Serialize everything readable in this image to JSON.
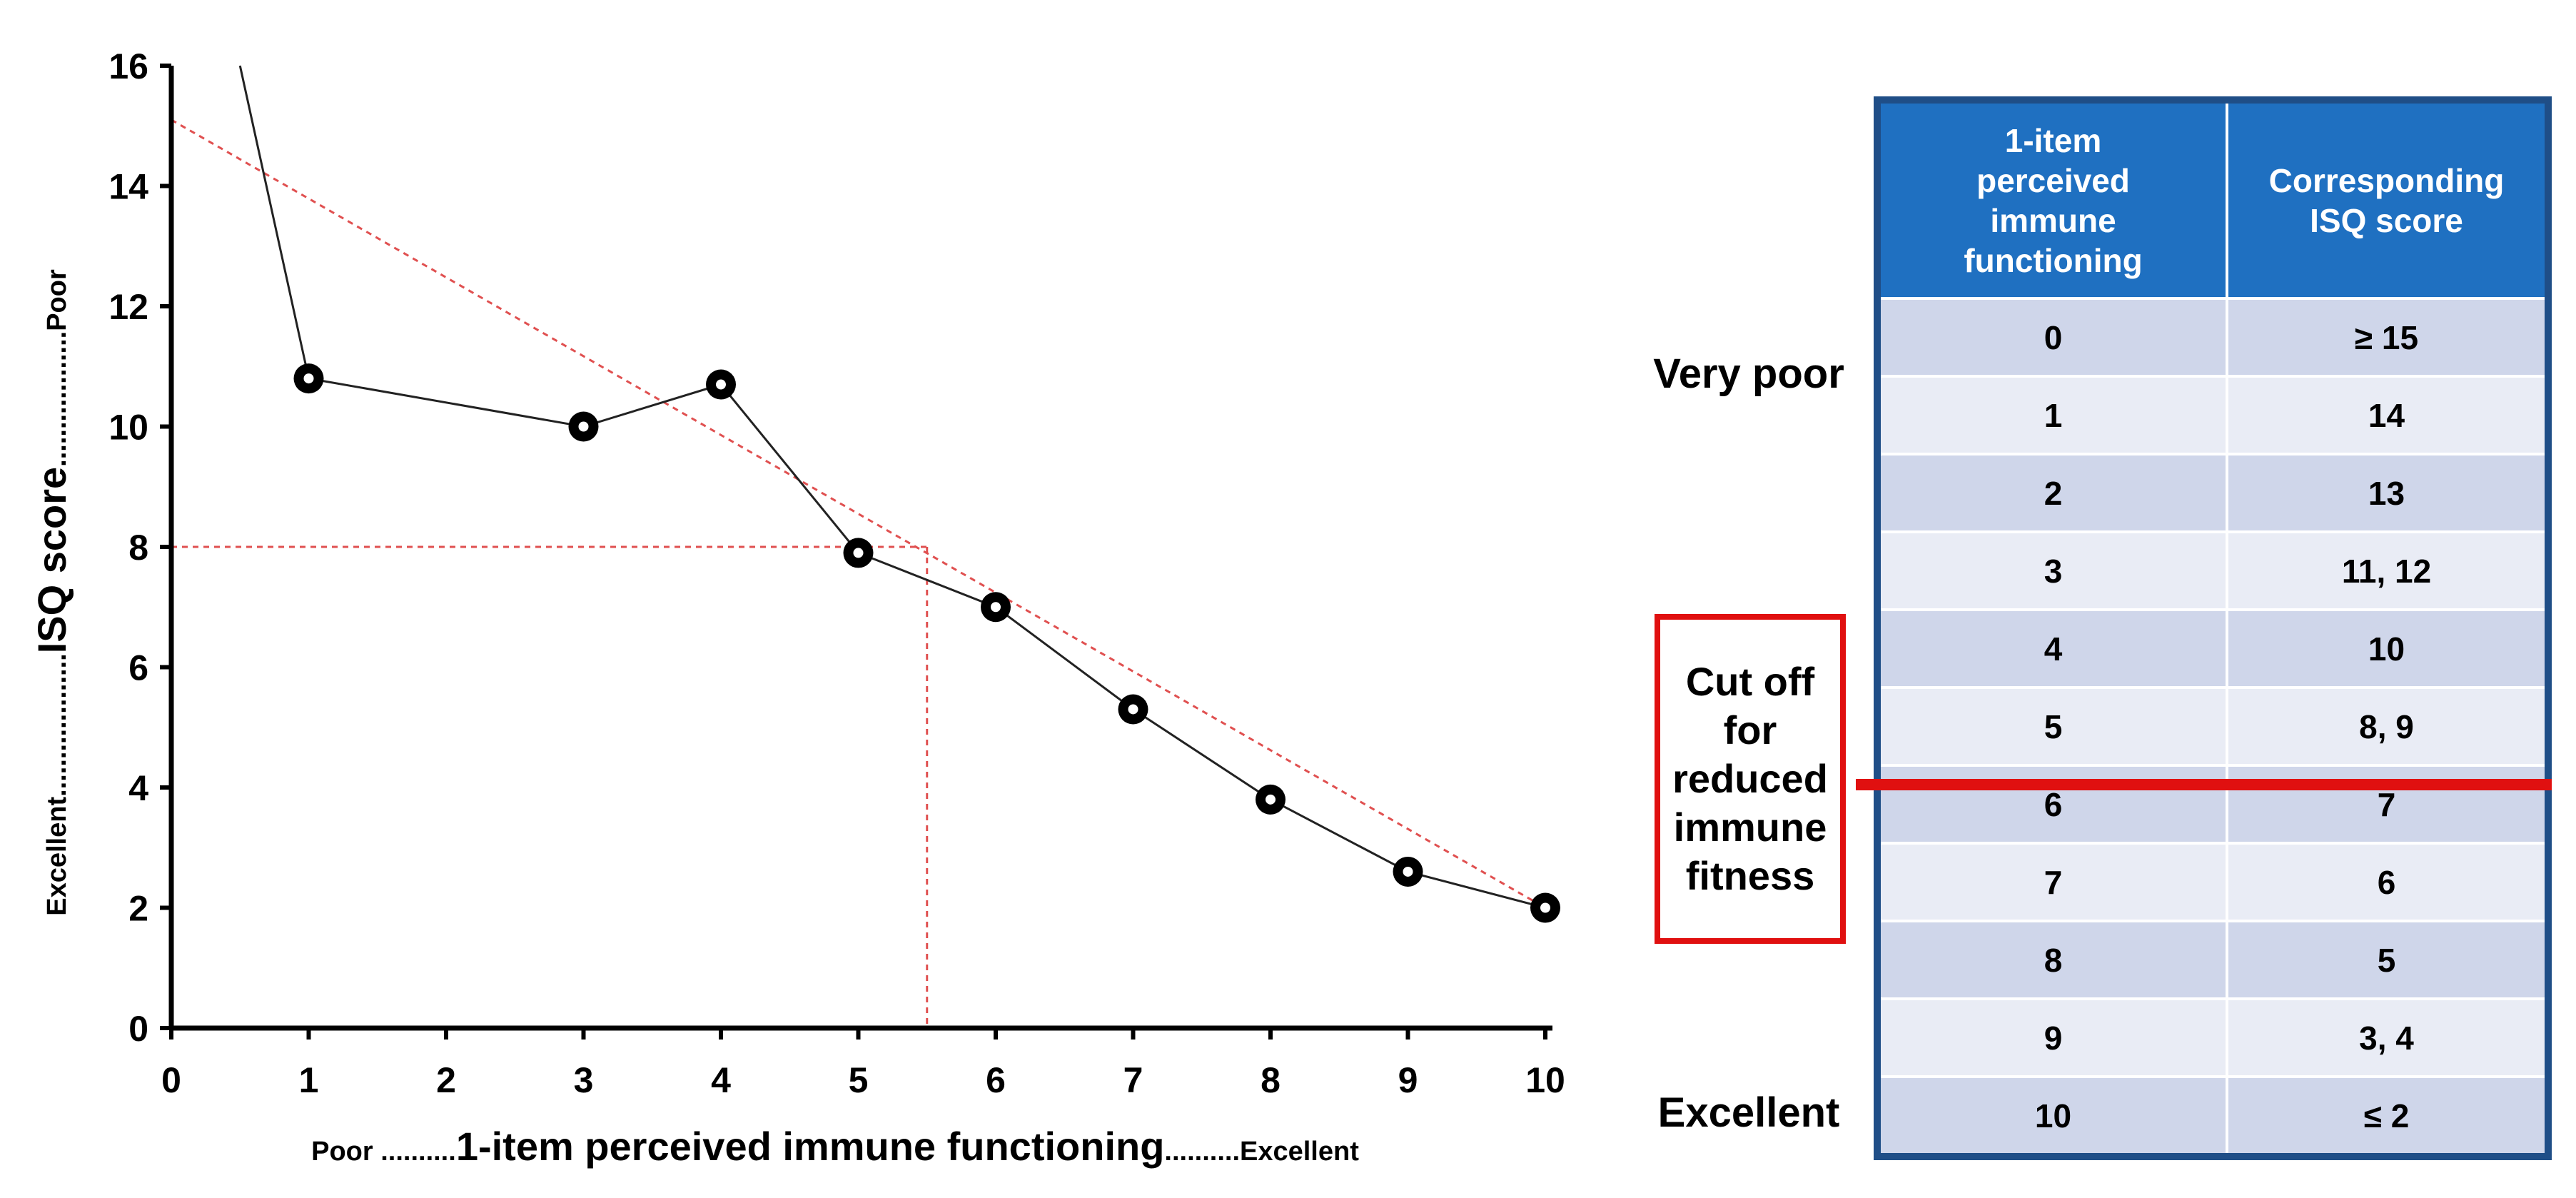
{
  "chart_data": {
    "type": "line",
    "title": "",
    "xlabel": "1-item perceived immune functioning",
    "xlabel_left": "Poor ..........",
    "xlabel_right": "..........Excellent",
    "ylabel": "ISQ score",
    "ylabel_bottom": "Excellent...................",
    "ylabel_top": "..................Poor",
    "xlim": [
      0,
      10
    ],
    "ylim": [
      0,
      16
    ],
    "xticks": [
      0,
      1,
      2,
      3,
      4,
      5,
      6,
      7,
      8,
      9,
      10
    ],
    "yticks": [
      0,
      2,
      4,
      6,
      8,
      10,
      12,
      14,
      16
    ],
    "series": [
      {
        "name": "ISQ score",
        "x": [
          1,
          3,
          4,
          5,
          6,
          7,
          8,
          9,
          10
        ],
        "y": [
          10.8,
          10.0,
          10.7,
          7.9,
          7.0,
          5.3,
          3.8,
          2.6,
          2.0
        ],
        "lead_in": [
          [
            0.5,
            16
          ],
          [
            1,
            10.8
          ]
        ]
      }
    ],
    "trend_line": {
      "x": [
        0,
        10
      ],
      "y": [
        15.1,
        2.0
      ]
    },
    "reference_lines": {
      "x": 5.5,
      "y": 8
    },
    "colors": {
      "series": "#222222",
      "trend": "#e05050",
      "axis": "#000000"
    }
  },
  "table": {
    "headers": [
      "1-item perceived immune functioning",
      "Corresponding ISQ score"
    ],
    "header1_lines": [
      "1-item",
      "perceived",
      "immune",
      "functioning"
    ],
    "header2_lines": [
      "Corresponding",
      "ISQ score"
    ],
    "rows": [
      [
        "0",
        "≥ 15"
      ],
      [
        "1",
        "14"
      ],
      [
        "2",
        "13"
      ],
      [
        "3",
        "11, 12"
      ],
      [
        "4",
        "10"
      ],
      [
        "5",
        "8, 9"
      ],
      [
        "6",
        "7"
      ],
      [
        "7",
        "6"
      ],
      [
        "8",
        "5"
      ],
      [
        "9",
        "3, 4"
      ],
      [
        "10",
        "≤ 2"
      ]
    ],
    "colors": {
      "header": "#1f70c1",
      "border": "#1f4e87",
      "row_odd": "#cfd6ea",
      "row_even": "#e9ecf5"
    }
  },
  "side_labels": {
    "very_poor": "Very poor",
    "excellent": "Excellent",
    "cutoff_lines": [
      "Cut off",
      "for",
      "reduced",
      "immune",
      "fitness"
    ],
    "cutoff_color": "#e01010"
  }
}
